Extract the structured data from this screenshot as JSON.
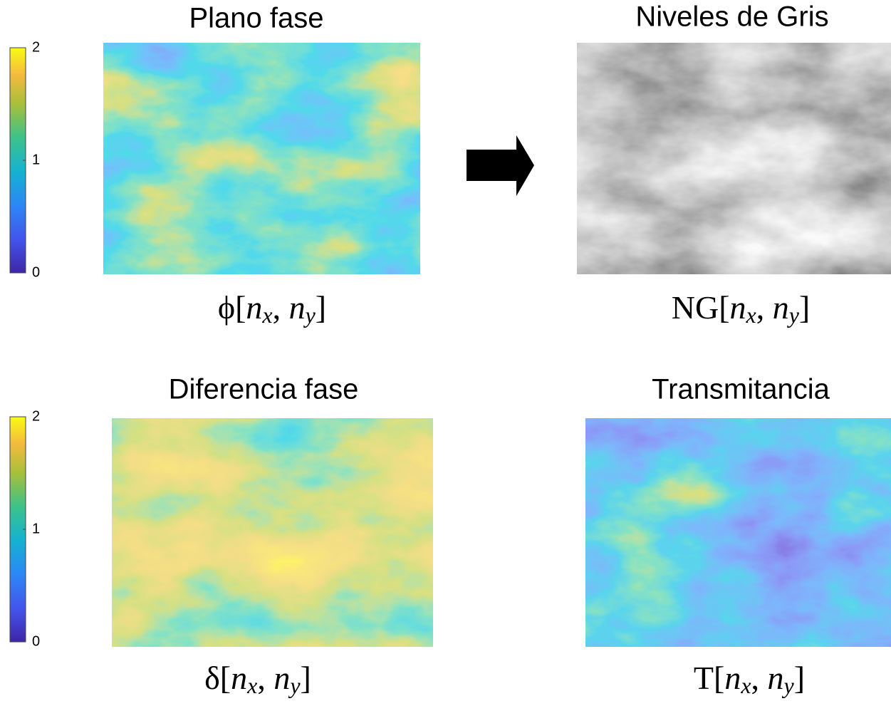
{
  "panels": [
    {
      "title": "Plano fase",
      "label_parts": [
        "ϕ[",
        "n",
        "x",
        ", ",
        "n",
        "y",
        "]"
      ]
    },
    {
      "title": "Niveles de Gris",
      "label_parts": [
        "NG[",
        "n",
        "x",
        ", ",
        "n",
        "y",
        "]"
      ]
    },
    {
      "title": "Diferencia fase",
      "label_parts": [
        "δ[",
        "n",
        "x",
        ", ",
        "n",
        "y",
        "]"
      ]
    },
    {
      "title": "Transmitancia",
      "label_parts": [
        "T[",
        "n",
        "x",
        ", ",
        "n",
        "y",
        "]"
      ]
    }
  ],
  "colorbars": [
    {
      "lim": [
        0,
        2
      ],
      "ticks": [
        0,
        1,
        2
      ]
    },
    {
      "lim": [
        0,
        2
      ],
      "ticks": [
        0,
        1,
        2
      ]
    }
  ]
}
